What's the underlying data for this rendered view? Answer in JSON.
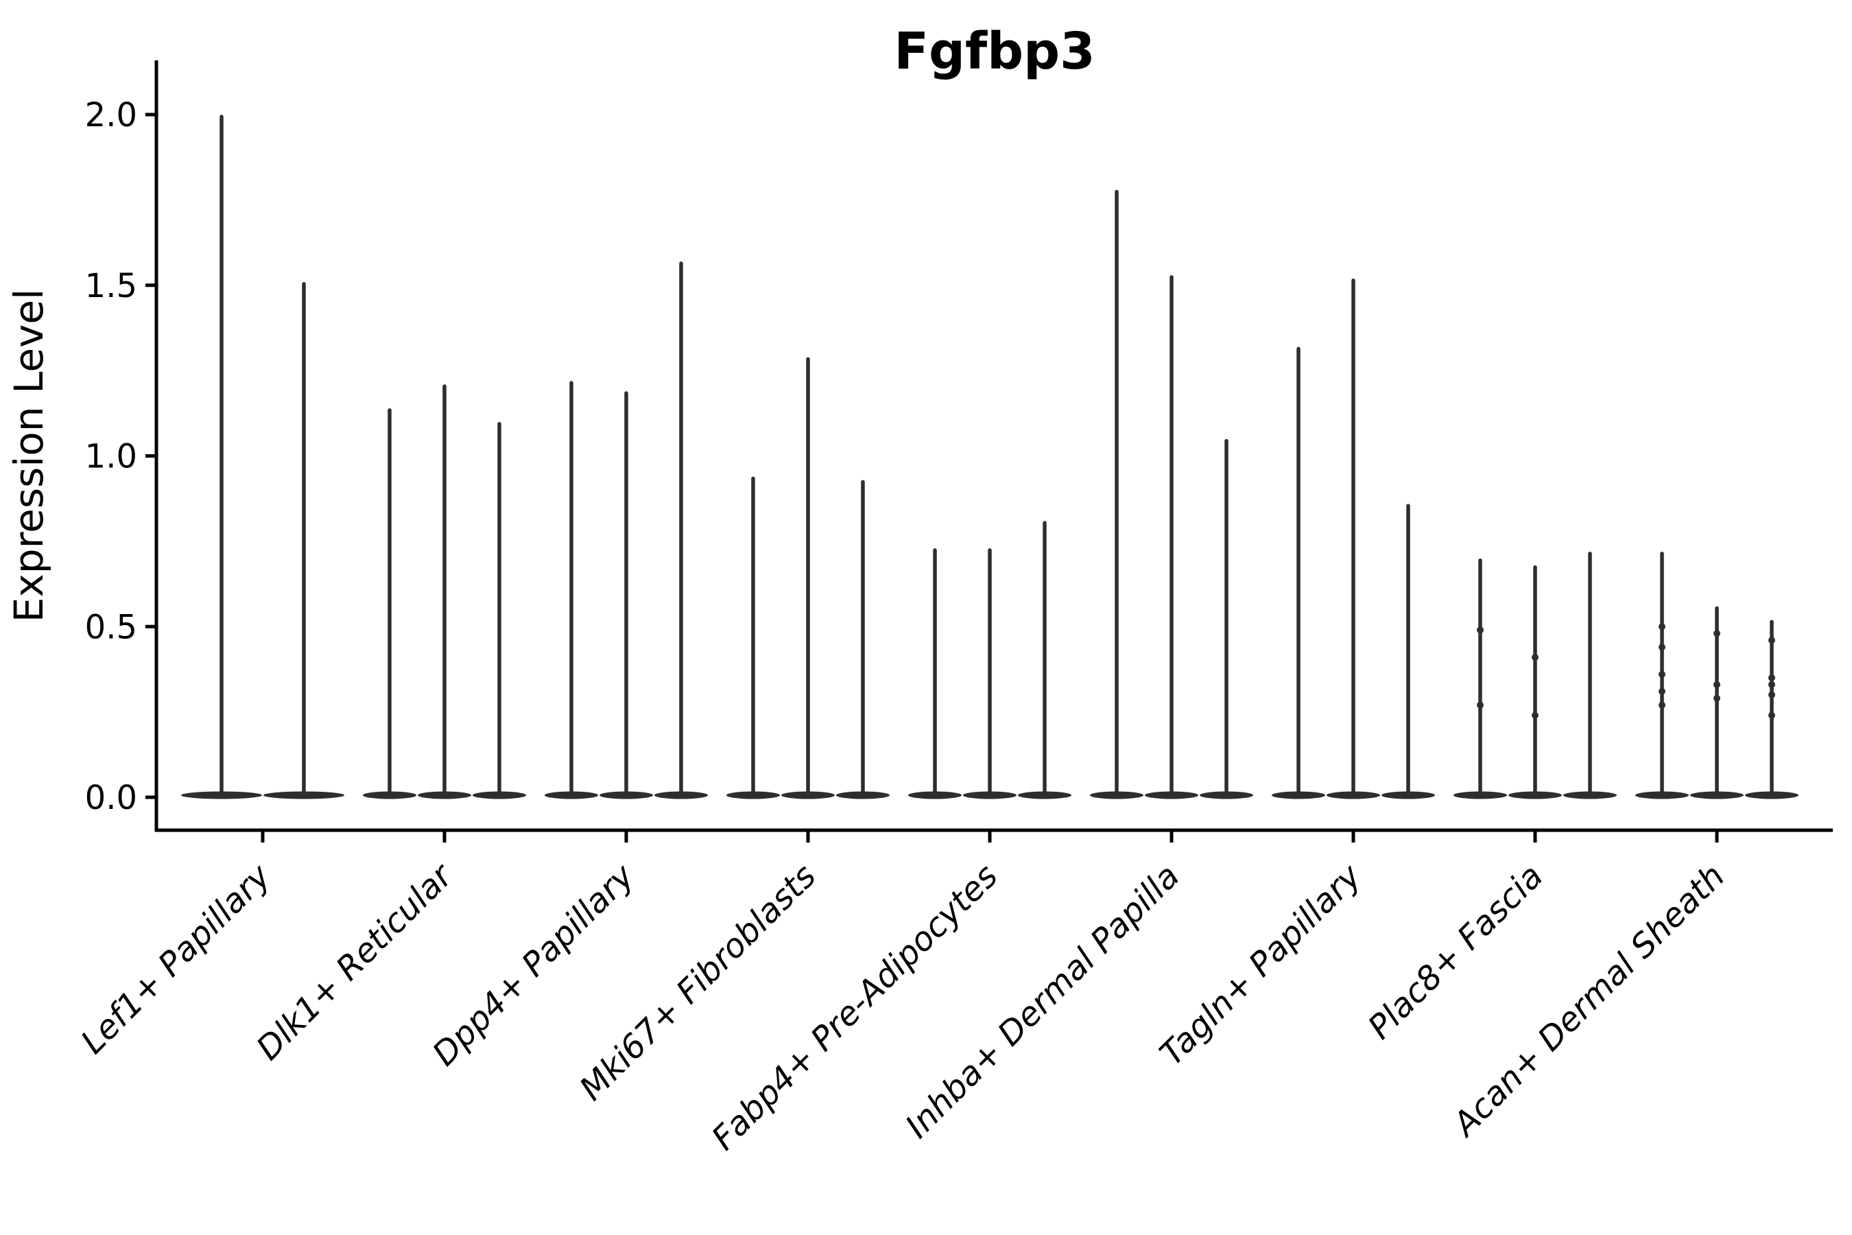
{
  "chart_data": {
    "type": "violin",
    "title": "Fgfbp3",
    "ylabel": "Expression Level",
    "xlabel": "",
    "y_tick_labels": [
      "0.0",
      "0.5",
      "1.0",
      "1.5",
      "2.0"
    ],
    "y_tick_values": [
      0.0,
      0.5,
      1.0,
      1.5,
      2.0
    ],
    "ylim": [
      0.0,
      2.16
    ],
    "grid": false,
    "legend_position": "none",
    "categories": [
      "Lef1+ Papillary",
      "Dlk1+ Reticular",
      "Dpp4+ Papillary",
      "Mki67+ Fibroblasts",
      "Fabp4+ Pre-Adipocytes",
      "Inhba+ Dermal Papilla",
      "Tagln+ Papillary",
      "Plac8+ Fascia",
      "Acan+ Dermal Sheath"
    ],
    "groups": [
      {
        "category": "Lef1+ Papillary",
        "violin_maxima": [
          2.0,
          1.51
        ],
        "points": [
          [],
          []
        ]
      },
      {
        "category": "Dlk1+ Reticular",
        "violin_maxima": [
          1.14,
          1.21,
          1.1
        ],
        "points": [
          [],
          [],
          []
        ]
      },
      {
        "category": "Dpp4+ Papillary",
        "violin_maxima": [
          1.22,
          1.19,
          1.57
        ],
        "points": [
          [],
          [],
          []
        ]
      },
      {
        "category": "Mki67+ Fibroblasts",
        "violin_maxima": [
          0.94,
          1.29,
          0.93
        ],
        "points": [
          [],
          [],
          []
        ]
      },
      {
        "category": "Fabp4+ Pre-Adipocytes",
        "violin_maxima": [
          0.73,
          0.73,
          0.81
        ],
        "points": [
          [],
          [],
          []
        ]
      },
      {
        "category": "Inhba+ Dermal Papilla",
        "violin_maxima": [
          1.78,
          1.53,
          1.05
        ],
        "points": [
          [],
          [],
          []
        ]
      },
      {
        "category": "Tagln+ Papillary",
        "violin_maxima": [
          1.32,
          1.52,
          0.86
        ],
        "points": [
          [],
          [],
          []
        ]
      },
      {
        "category": "Plac8+ Fascia",
        "violin_maxima": [
          0.7,
          0.68,
          0.72
        ],
        "points": [
          [
            0.49,
            0.27
          ],
          [
            0.41,
            0.24
          ],
          []
        ]
      },
      {
        "category": "Acan+ Dermal Sheath",
        "violin_maxima": [
          0.72,
          0.56,
          0.52
        ],
        "points": [
          [
            0.5,
            0.44,
            0.36,
            0.31,
            0.27
          ],
          [
            0.48,
            0.33,
            0.29
          ],
          [
            0.46,
            0.35,
            0.33,
            0.3,
            0.24
          ]
        ]
      }
    ]
  },
  "colors": {
    "violin": "#2e2e2e",
    "axis": "#000000",
    "text": "#000000",
    "background": "#ffffff"
  }
}
